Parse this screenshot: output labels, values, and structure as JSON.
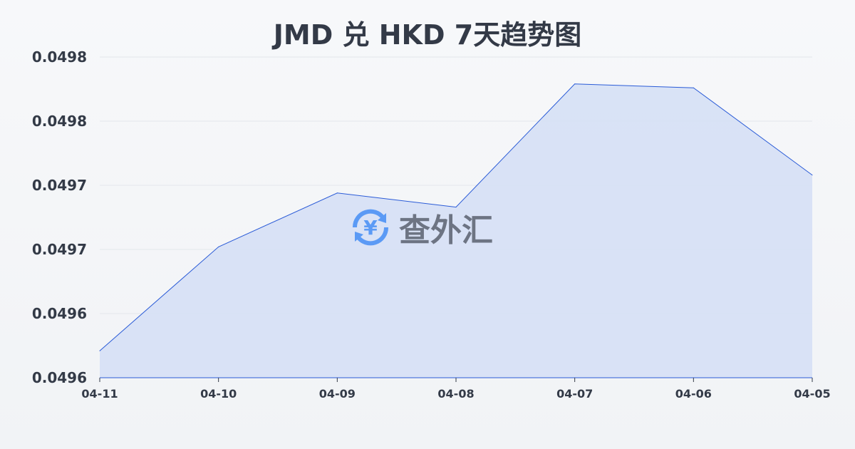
{
  "title": "JMD 兑 HKD 7天趋势图",
  "watermark": {
    "text": "查外汇",
    "icon": "yen-exchange-icon",
    "color": "#5b9af5"
  },
  "chart_data": {
    "type": "area",
    "title": "JMD 兑 HKD 7天趋势图",
    "categories": [
      "04-11",
      "04-10",
      "04-09",
      "04-08",
      "04-07",
      "04-06",
      "04-05"
    ],
    "values": [
      0.049581,
      0.049662,
      0.049704,
      0.049693,
      0.049789,
      0.049786,
      0.049718
    ],
    "yticks": [
      0.04956,
      0.04961,
      0.04966,
      0.04971,
      0.04976,
      0.04981
    ],
    "ytick_labels": [
      "0.0496",
      "0.0496",
      "0.0497",
      "0.0497",
      "0.0498",
      "0.0498"
    ],
    "ylim": [
      0.04956,
      0.04981
    ],
    "grid": true,
    "line_color": "#2a5bd7",
    "fill_color": "#d6e0f5"
  }
}
